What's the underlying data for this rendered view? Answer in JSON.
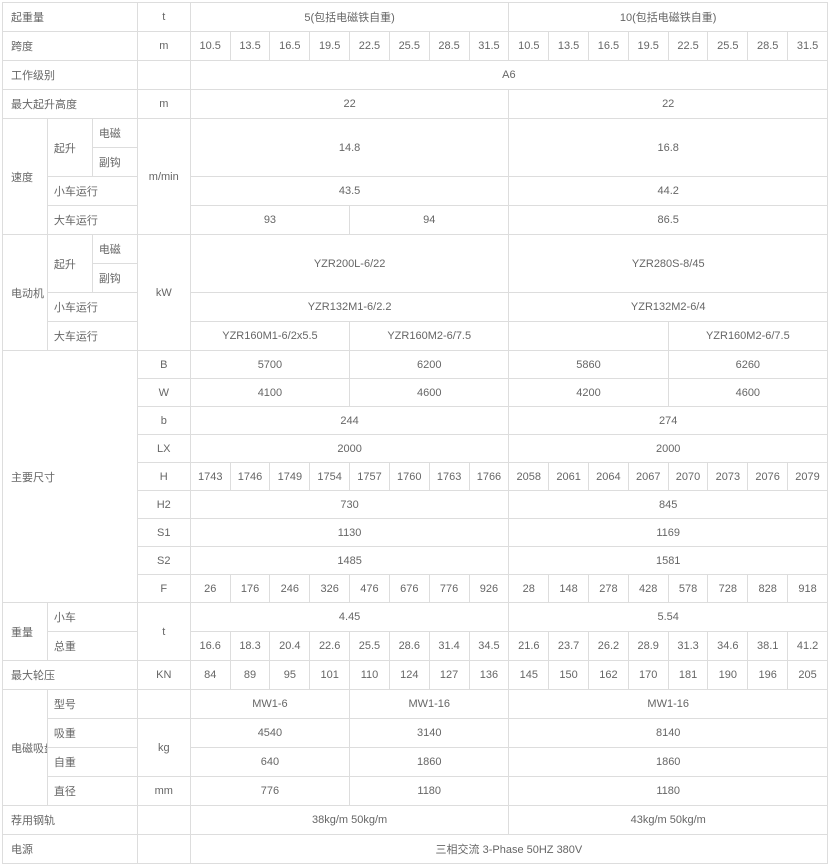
{
  "colors": {
    "border": "#dddddd",
    "text": "#666666",
    "background": "#ffffff"
  },
  "typography": {
    "fontsize": 11
  },
  "labels": {
    "lifting_capacity": "起重量",
    "span": "跨度",
    "work_class": "工作级别",
    "max_lift_height": "最大起升高度",
    "speed": "速度",
    "hoist": "起升",
    "electromagnet": "电磁",
    "aux_hook": "副钩",
    "trolley_travel": "小车运行",
    "crane_travel": "大车运行",
    "motor": "电动机",
    "main_dimensions": "主要尺寸",
    "weight": "重量",
    "trolley": "小车",
    "total_weight": "总重",
    "max_wheel_load": "最大轮压",
    "magnet_disk": "电磁吸盘",
    "model": "型号",
    "absorb_weight": "吸重",
    "self_weight": "自重",
    "diameter": "直径",
    "recommended_rail": "荐用钢轨",
    "power_supply": "电源"
  },
  "units": {
    "t": "t",
    "m": "m",
    "m_min": "m/min",
    "kW": "kW",
    "KN": "KN",
    "kg": "kg",
    "mm": "mm",
    "B": "B",
    "W": "W",
    "b_small": "b",
    "LX": "LX",
    "H": "H",
    "H2": "H2",
    "S1": "S1",
    "S2": "S2",
    "F": "F"
  },
  "head": {
    "cap5": "5(包括电磁铁自重)",
    "cap10": "10(包括电磁铁自重)"
  },
  "spans": [
    "10.5",
    "13.5",
    "16.5",
    "19.5",
    "22.5",
    "25.5",
    "28.5",
    "31.5",
    "10.5",
    "13.5",
    "16.5",
    "19.5",
    "22.5",
    "25.5",
    "28.5",
    "31.5"
  ],
  "work_class": "A6",
  "max_height": {
    "a": "22",
    "b": "22"
  },
  "speed": {
    "hoist": {
      "a": "14.8",
      "b": "16.8"
    },
    "trolley": {
      "a": "43.5",
      "b": "44.2"
    },
    "crane": {
      "a1": "93",
      "a2": "94",
      "b": "86.5"
    }
  },
  "motor": {
    "hoist": {
      "a": "YZR200L-6/22",
      "b": "YZR280S-8/45"
    },
    "trolley": {
      "a": "YZR132M1-6/2.2",
      "b": "YZR132M2-6/4"
    },
    "crane": {
      "a1": "YZR160M1-6/2x5.5",
      "a2": "YZR160M2-6/7.5",
      "b1": "",
      "b2": "YZR160M2-6/7.5"
    }
  },
  "dims": {
    "B": {
      "a1": "5700",
      "a2": "6200",
      "b1": "5860",
      "b2": "6260"
    },
    "W": {
      "a1": "4100",
      "a2": "4600",
      "b1": "4200",
      "b2": "4600"
    },
    "b_small": {
      "a": "244",
      "b": "274"
    },
    "LX": {
      "a": "2000",
      "b": "2000"
    },
    "H": [
      "1743",
      "1746",
      "1749",
      "1754",
      "1757",
      "1760",
      "1763",
      "1766",
      "2058",
      "2061",
      "2064",
      "2067",
      "2070",
      "2073",
      "2076",
      "2079"
    ],
    "H2": {
      "a": "730",
      "b": "845"
    },
    "S1": {
      "a": "1130",
      "b": "1169"
    },
    "S2": {
      "a": "1485",
      "b": "1581"
    },
    "F": [
      "26",
      "176",
      "246",
      "326",
      "476",
      "676",
      "776",
      "926",
      "28",
      "148",
      "278",
      "428",
      "578",
      "728",
      "828",
      "918"
    ]
  },
  "weight": {
    "trolley": {
      "a": "4.45",
      "b": "5.54"
    },
    "total": [
      "16.6",
      "18.3",
      "20.4",
      "22.6",
      "25.5",
      "28.6",
      "31.4",
      "34.5",
      "21.6",
      "23.7",
      "26.2",
      "28.9",
      "31.3",
      "34.6",
      "38.1",
      "41.2"
    ]
  },
  "wheel_load": [
    "84",
    "89",
    "95",
    "101",
    "110",
    "124",
    "127",
    "136",
    "145",
    "150",
    "162",
    "170",
    "181",
    "190",
    "196",
    "205"
  ],
  "magnet": {
    "model": {
      "a1": "MW1-6",
      "a2": "MW1-16",
      "b": "MW1-16"
    },
    "absorb": {
      "a1": "4540",
      "a2": "3140",
      "b": "8140"
    },
    "self": {
      "a1": "640",
      "a2": "1860",
      "b": "1860"
    },
    "diameter": {
      "a1": "776",
      "a2": "1180",
      "b": "1180"
    }
  },
  "rail": {
    "a": "38kg/m   50kg/m",
    "b": "43kg/m   50kg/m"
  },
  "power": "三相交流 3-Phase   50HZ   380V"
}
